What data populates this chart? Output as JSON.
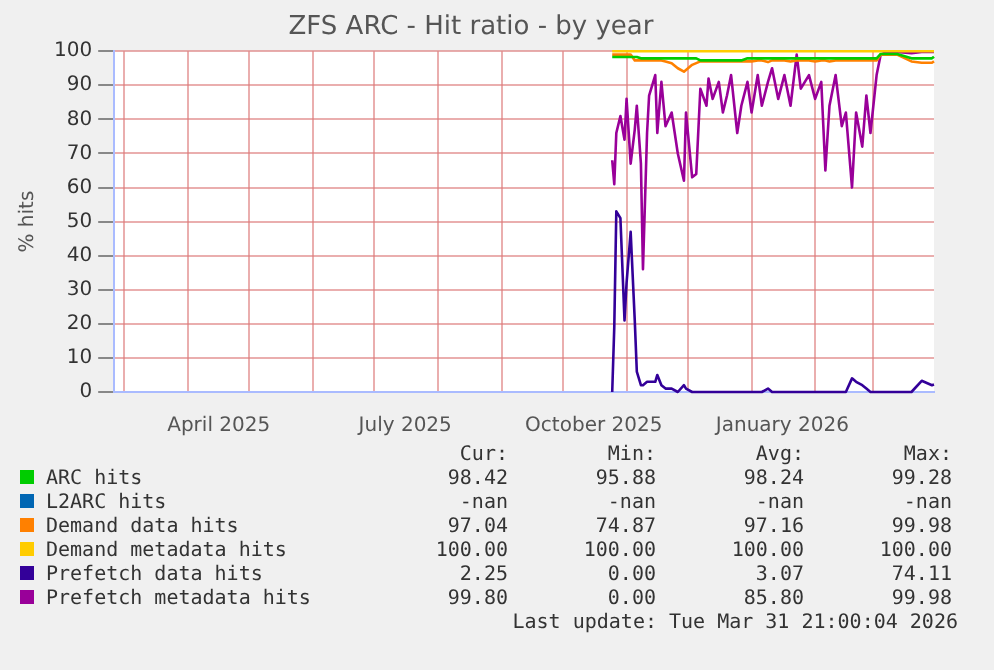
{
  "chart_data": {
    "type": "line",
    "title": "ZFS ARC - Hit ratio - by year",
    "ylabel": "% hits",
    "x": [
      "2025-10-25",
      "2025-10-26",
      "2025-10-27",
      "2025-10-29",
      "2025-10-31",
      "2025-11-01",
      "2025-11-03",
      "2025-11-05",
      "2025-11-06",
      "2025-11-08",
      "2025-11-09",
      "2025-11-11",
      "2025-11-12",
      "2025-11-15",
      "2025-11-16",
      "2025-11-18",
      "2025-11-20",
      "2025-11-23",
      "2025-11-26",
      "2025-11-29",
      "2025-11-30",
      "2025-12-03",
      "2025-12-05",
      "2025-12-07",
      "2025-12-10",
      "2025-12-11",
      "2025-12-13",
      "2025-12-16",
      "2025-12-18",
      "2025-12-20",
      "2025-12-22",
      "2025-12-25",
      "2025-12-27",
      "2025-12-30",
      "2026-01-01",
      "2026-01-04",
      "2026-01-06",
      "2026-01-09",
      "2026-01-11",
      "2026-01-14",
      "2026-01-17",
      "2026-01-20",
      "2026-01-23",
      "2026-01-25",
      "2026-01-29",
      "2026-02-01",
      "2026-02-04",
      "2026-02-06",
      "2026-02-08",
      "2026-02-11",
      "2026-02-14",
      "2026-02-16",
      "2026-02-19",
      "2026-02-21",
      "2026-02-24",
      "2026-02-26",
      "2026-02-28",
      "2026-03-03",
      "2026-03-05",
      "2026-03-08",
      "2026-03-13",
      "2026-03-20",
      "2026-03-25",
      "2026-03-30",
      "2026-03-31"
    ],
    "series": [
      {
        "name": "ARC hits",
        "color": "#00cc00",
        "values": [
          98.3,
          98.3,
          98.3,
          98.3,
          98.3,
          98.3,
          98.3,
          98.3,
          98.3,
          97.9,
          97.9,
          97.9,
          97.9,
          97.9,
          97.9,
          97.9,
          97.9,
          97.9,
          97.9,
          97.9,
          97.9,
          97.9,
          97.9,
          97.3,
          97.3,
          97.3,
          97.3,
          97.3,
          97.3,
          97.3,
          97.3,
          97.3,
          97.3,
          97.9,
          97.9,
          97.9,
          97.9,
          97.9,
          97.9,
          97.9,
          97.9,
          97.9,
          97.9,
          97.9,
          97.9,
          97.9,
          97.9,
          97.9,
          97.9,
          97.9,
          97.9,
          97.9,
          97.9,
          97.9,
          97.9,
          97.9,
          97.9,
          97.9,
          99.2,
          99.2,
          99.2,
          97.9,
          97.9,
          97.9,
          98.4
        ]
      },
      {
        "name": "L2ARC hits",
        "color": "#0066b3",
        "values": [
          null,
          null,
          null,
          null,
          null,
          null,
          null,
          null,
          null,
          null,
          null,
          null,
          null,
          null,
          null,
          null,
          null,
          null,
          null,
          null,
          null,
          null,
          null,
          null,
          null,
          null,
          null,
          null,
          null,
          null,
          null,
          null,
          null,
          null,
          null,
          null,
          null,
          null,
          null,
          null,
          null,
          null,
          null,
          null,
          null,
          null,
          null,
          null,
          null,
          null,
          null,
          null,
          null,
          null,
          null,
          null,
          null,
          null,
          null,
          null,
          null,
          null,
          null,
          null,
          null
        ]
      },
      {
        "name": "Demand data hits",
        "color": "#ff8000",
        "values": [
          99,
          99,
          99,
          99,
          99,
          99,
          99,
          97.3,
          97.3,
          97.3,
          97.3,
          97.3,
          97.3,
          97.3,
          97.3,
          97.3,
          97,
          96.5,
          95,
          94,
          94.5,
          96,
          96.5,
          97,
          97,
          97,
          97,
          97,
          97,
          97,
          97,
          97,
          97,
          97,
          97,
          97.3,
          97.3,
          96.8,
          97.3,
          97.3,
          97.3,
          97,
          97.3,
          97.3,
          97.3,
          97,
          97.3,
          97.3,
          97,
          97.3,
          97.3,
          97.3,
          97.3,
          97.3,
          97.3,
          97.3,
          97.3,
          97.3,
          99,
          99,
          99,
          97,
          96.6,
          96.6,
          97
        ]
      },
      {
        "name": "Demand metadata hits",
        "color": "#ffcc00",
        "values": [
          100,
          100,
          100,
          100,
          100,
          100,
          100,
          100,
          100,
          100,
          100,
          100,
          100,
          100,
          100,
          100,
          100,
          100,
          100,
          100,
          100,
          100,
          100,
          100,
          100,
          100,
          100,
          100,
          100,
          100,
          100,
          100,
          100,
          100,
          100,
          100,
          100,
          100,
          100,
          100,
          100,
          100,
          100,
          100,
          100,
          100,
          100,
          100,
          100,
          100,
          100,
          100,
          100,
          100,
          100,
          100,
          100,
          100,
          100,
          100,
          100,
          100,
          100,
          100,
          100
        ]
      },
      {
        "name": "Prefetch data hits",
        "color": "#330099",
        "values": [
          0,
          19,
          53,
          51,
          21,
          32,
          47,
          21,
          6,
          2,
          2,
          3,
          3,
          3,
          5,
          2,
          1,
          1,
          0,
          2,
          1,
          0,
          0,
          0,
          0,
          0,
          0,
          0,
          0,
          0,
          0,
          0,
          0,
          0,
          0,
          0,
          0,
          1,
          0,
          0,
          0,
          0,
          0,
          0,
          0,
          0,
          0,
          0,
          0,
          0,
          0,
          0,
          4,
          3,
          2,
          1,
          0,
          0,
          0,
          0,
          0,
          0,
          3.3,
          2,
          2.2
        ]
      },
      {
        "name": "Prefetch metadata hits",
        "color": "#990099",
        "values": [
          68,
          61,
          76,
          81,
          74,
          86,
          67,
          77,
          84,
          67,
          36,
          76,
          87,
          93,
          76,
          91,
          78,
          82,
          70,
          62,
          82,
          63,
          64,
          89,
          84,
          92,
          86,
          91,
          82,
          87,
          93,
          76,
          84,
          91,
          82,
          93,
          84,
          91,
          95,
          86,
          93,
          84,
          99,
          89,
          93,
          86,
          91,
          65,
          84,
          93,
          78,
          82,
          60,
          82,
          72,
          87,
          76,
          93,
          99,
          99.8,
          99.8,
          99.4,
          99.8,
          99.8,
          99.8
        ]
      }
    ],
    "xlim": [
      "2025-02-24",
      "2026-03-31"
    ],
    "xticks": [
      {
        "value": "2025-03-01",
        "label": null
      },
      {
        "value": "2025-04-01",
        "label": null
      },
      {
        "value": "2025-04-16",
        "label": "April 2025"
      },
      {
        "value": "2025-05-01",
        "label": null
      },
      {
        "value": "2025-06-01",
        "label": null
      },
      {
        "value": "2025-07-01",
        "label": null
      },
      {
        "value": "2025-07-16",
        "label": "July 2025"
      },
      {
        "value": "2025-08-01",
        "label": null
      },
      {
        "value": "2025-09-01",
        "label": null
      },
      {
        "value": "2025-10-01",
        "label": null
      },
      {
        "value": "2025-10-16",
        "label": "October 2025"
      },
      {
        "value": "2025-11-01",
        "label": null
      },
      {
        "value": "2025-12-01",
        "label": null
      },
      {
        "value": "2026-01-01",
        "label": null
      },
      {
        "value": "2026-01-16",
        "label": "January 2026"
      },
      {
        "value": "2026-02-01",
        "label": null
      },
      {
        "value": "2026-03-01",
        "label": null
      }
    ],
    "ylim": [
      0,
      100
    ],
    "yticks": [
      0,
      10,
      20,
      30,
      40,
      50,
      60,
      70,
      80,
      90,
      100
    ],
    "grid": true,
    "legend": "bottom",
    "marker": "none",
    "line_style": "solid",
    "annotations": [
      "Cur:",
      "Min:",
      "Avg:",
      "Max:",
      "98.42",
      "95.88",
      "98.24",
      "99.28",
      "-nan",
      "-nan",
      "-nan",
      "-nan",
      "97.04",
      "74.87",
      "97.16",
      "99.98",
      "100.00",
      "100.00",
      "100.00",
      "100.00",
      "2.25",
      "0.00",
      "3.07",
      "74.11",
      "99.80",
      "0.00",
      "85.80",
      "99.98",
      "Last update: Tue Mar 31 21:00:04 2026"
    ]
  }
}
